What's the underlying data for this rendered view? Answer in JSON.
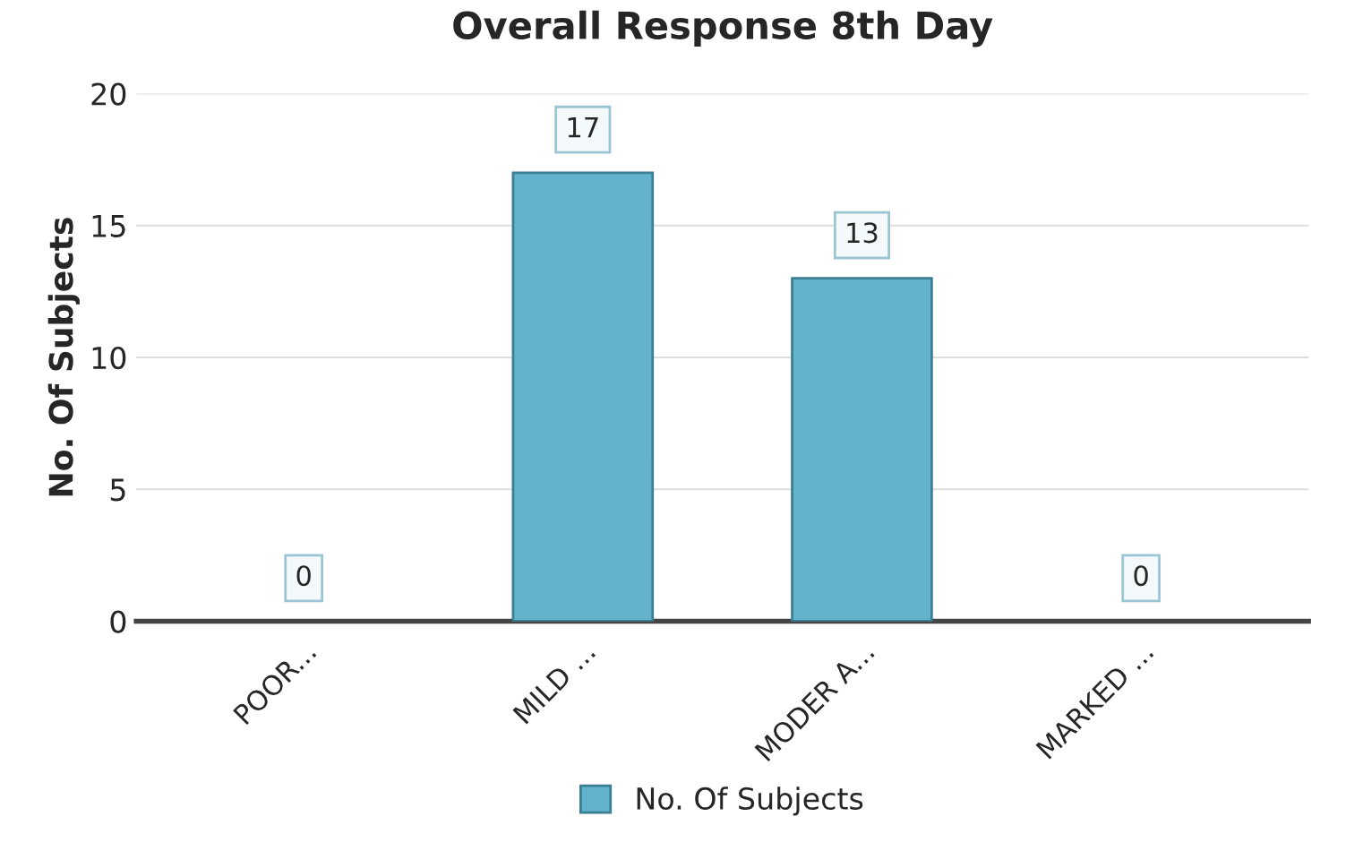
{
  "chart_data": {
    "type": "bar",
    "title": "Overall Response 8th Day",
    "ylabel": "No. Of Subjects",
    "categories": [
      "POOR...",
      "MILD ...",
      "MODER A...",
      "MARKED ..."
    ],
    "series": [
      {
        "name": "No. Of Subjects",
        "color": "#62b3cb",
        "values": [
          0,
          17,
          13,
          0
        ]
      }
    ],
    "ylim": [
      0,
      20
    ],
    "yticks": [
      0,
      5,
      10,
      15,
      20
    ],
    "grid": "y",
    "legend": "bottom",
    "data_labels": true
  }
}
